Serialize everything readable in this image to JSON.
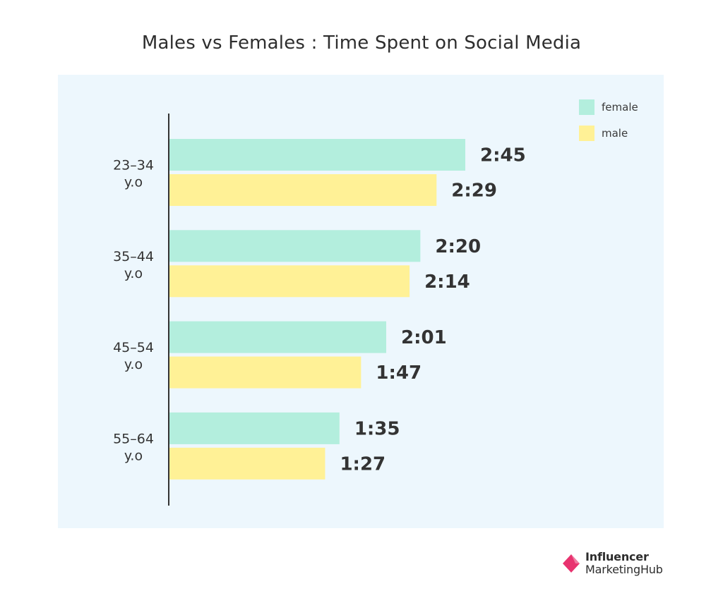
{
  "title": "Males vs Females : Time Spent on Social Media",
  "legend": {
    "female": {
      "label": "female",
      "color": "#b3eedd"
    },
    "male": {
      "label": "male",
      "color": "#fff196"
    }
  },
  "brand": {
    "line1": "Influencer",
    "line2": "MarketingHub",
    "logo_color": "#e8336f"
  },
  "chart_data": {
    "type": "bar",
    "orientation": "horizontal",
    "title": "Males vs Females : Time Spent on Social Media",
    "categories": [
      [
        "23–34",
        "y.o"
      ],
      [
        "35–44",
        "y.o"
      ],
      [
        "45–54",
        "y.o"
      ],
      [
        "55–64",
        "y.o"
      ]
    ],
    "series": [
      {
        "name": "female",
        "color": "#b3eedd",
        "values": [
          165,
          140,
          121,
          95
        ],
        "labels": [
          "2:45",
          "2:20",
          "2:01",
          "1:35"
        ]
      },
      {
        "name": "male",
        "color": "#fff196",
        "values": [
          149,
          134,
          107,
          87
        ],
        "labels": [
          "2:29",
          "2:14",
          "1:47",
          "1:27"
        ]
      }
    ],
    "value_unit": "minutes",
    "xlim": [
      0,
      240
    ],
    "grid": false,
    "legend_position": "top-right"
  }
}
